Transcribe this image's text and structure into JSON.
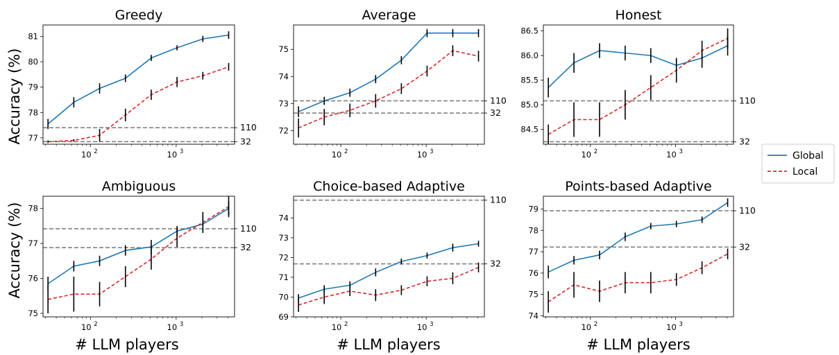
{
  "figure": {
    "ylabel": "Accuracy (%)",
    "xlabel": "# LLM players"
  },
  "legend": {
    "placement": "right-center",
    "entries": [
      {
        "name": "Global",
        "color": "#1f77b4",
        "style": "solid"
      },
      {
        "name": "Local",
        "color": "#d62728",
        "style": "dashed"
      }
    ]
  },
  "colors": {
    "global": "#1f77b4",
    "local": "#d62728",
    "reference": "#808080",
    "errorbar": "#000000"
  },
  "chart_data": [
    {
      "type": "line",
      "title": "Greedy",
      "xscale": "log",
      "xlim": [
        28,
        4800
      ],
      "ylim": [
        76.75,
        81.45
      ],
      "yticks": [
        77,
        78,
        79,
        80,
        81
      ],
      "x": [
        32,
        64,
        128,
        256,
        512,
        1024,
        2048,
        4096
      ],
      "series": [
        {
          "name": "Global",
          "values": [
            77.55,
            78.4,
            78.95,
            79.35,
            80.15,
            80.55,
            80.9,
            81.05
          ],
          "err": [
            0.2,
            0.2,
            0.2,
            0.15,
            0.12,
            0.1,
            0.12,
            0.15
          ]
        },
        {
          "name": "Local",
          "values": [
            76.85,
            76.9,
            77.1,
            77.9,
            78.7,
            79.2,
            79.45,
            79.8
          ],
          "err": [
            0.05,
            0.05,
            0.25,
            0.25,
            0.2,
            0.2,
            0.15,
            0.15
          ]
        }
      ],
      "reference_lines": [
        {
          "label": "110",
          "value": 77.4
        },
        {
          "label": "32",
          "value": 76.85
        }
      ]
    },
    {
      "type": "line",
      "title": "Average",
      "xscale": "log",
      "xlim": [
        28,
        4800
      ],
      "ylim": [
        71.5,
        75.9
      ],
      "yticks": [
        72,
        73,
        74,
        75
      ],
      "x": [
        32,
        64,
        128,
        256,
        512,
        1024,
        2048,
        4096
      ],
      "series": [
        {
          "name": "Global",
          "values": [
            72.7,
            73.1,
            73.4,
            73.9,
            74.6,
            75.6,
            75.6,
            75.6
          ],
          "err": [
            0.2,
            0.15,
            0.15,
            0.15,
            0.15,
            0.15,
            0.15,
            0.15
          ]
        },
        {
          "name": "Local",
          "values": [
            72.1,
            72.5,
            72.75,
            73.1,
            73.55,
            74.2,
            74.95,
            74.75
          ],
          "err": [
            0.35,
            0.3,
            0.25,
            0.25,
            0.2,
            0.2,
            0.2,
            0.2
          ]
        }
      ],
      "reference_lines": [
        {
          "label": "110",
          "value": 73.1
        },
        {
          "label": "32",
          "value": 72.65
        }
      ]
    },
    {
      "type": "line",
      "title": "Honest",
      "xscale": "log",
      "xlim": [
        28,
        4800
      ],
      "ylim": [
        84.2,
        86.62
      ],
      "yticks": [
        84.5,
        85.0,
        85.5,
        86.0,
        86.5
      ],
      "x": [
        32,
        64,
        128,
        256,
        512,
        1024,
        2048,
        4096
      ],
      "series": [
        {
          "name": "Global",
          "values": [
            85.35,
            85.85,
            86.1,
            86.05,
            86.0,
            85.8,
            85.95,
            86.2
          ],
          "err": [
            0.2,
            0.2,
            0.15,
            0.15,
            0.15,
            0.15,
            0.2,
            0.2
          ]
        },
        {
          "name": "Local",
          "values": [
            84.4,
            84.7,
            84.7,
            85.0,
            85.35,
            85.7,
            86.1,
            86.35
          ],
          "err": [
            0.2,
            0.35,
            0.35,
            0.3,
            0.25,
            0.25,
            0.2,
            0.2
          ]
        }
      ],
      "reference_lines": [
        {
          "label": "110",
          "value": 85.08
        },
        {
          "label": "32",
          "value": 84.25
        }
      ]
    },
    {
      "type": "line",
      "title": "Ambiguous",
      "xscale": "log",
      "xlim": [
        28,
        4800
      ],
      "ylim": [
        74.9,
        78.35
      ],
      "yticks": [
        75,
        76,
        77,
        78
      ],
      "x": [
        32,
        64,
        128,
        256,
        512,
        1024,
        2048,
        4096
      ],
      "series": [
        {
          "name": "Global",
          "values": [
            75.85,
            76.35,
            76.5,
            76.8,
            76.9,
            77.35,
            77.55,
            78.0
          ],
          "err": [
            0.2,
            0.15,
            0.15,
            0.15,
            0.2,
            0.15,
            0.2,
            0.2
          ]
        },
        {
          "name": "Local",
          "values": [
            75.4,
            75.55,
            75.55,
            76.05,
            76.55,
            77.15,
            77.6,
            78.05
          ],
          "err": [
            0.4,
            0.5,
            0.35,
            0.3,
            0.3,
            0.25,
            0.3,
            0.3
          ]
        }
      ],
      "reference_lines": [
        {
          "label": "110",
          "value": 77.42
        },
        {
          "label": "32",
          "value": 76.88
        }
      ]
    },
    {
      "type": "line",
      "title": "Choice-based Adaptive",
      "xscale": "log",
      "xlim": [
        28,
        4800
      ],
      "ylim": [
        69.0,
        75.1
      ],
      "yticks": [
        69,
        70,
        71,
        72,
        73,
        74
      ],
      "x": [
        32,
        64,
        128,
        256,
        512,
        1024,
        2048,
        4096
      ],
      "series": [
        {
          "name": "Global",
          "values": [
            69.95,
            70.4,
            70.6,
            71.25,
            71.8,
            72.1,
            72.5,
            72.7
          ],
          "err": [
            0.2,
            0.2,
            0.2,
            0.2,
            0.15,
            0.15,
            0.2,
            0.15
          ]
        },
        {
          "name": "Local",
          "values": [
            69.6,
            70.0,
            70.3,
            70.1,
            70.35,
            70.8,
            70.95,
            71.5
          ],
          "err": [
            0.35,
            0.35,
            0.25,
            0.3,
            0.25,
            0.25,
            0.3,
            0.25
          ]
        }
      ],
      "reference_lines": [
        {
          "label": "110",
          "value": 74.9
        },
        {
          "label": "32",
          "value": 71.68
        }
      ]
    },
    {
      "type": "line",
      "title": "Points-based Adaptive",
      "xscale": "log",
      "xlim": [
        28,
        4800
      ],
      "ylim": [
        73.95,
        79.6
      ],
      "yticks": [
        74,
        75,
        76,
        77,
        78,
        79
      ],
      "x": [
        32,
        64,
        128,
        256,
        512,
        1024,
        2048,
        4096
      ],
      "series": [
        {
          "name": "Global",
          "values": [
            76.05,
            76.6,
            76.85,
            77.7,
            78.2,
            78.3,
            78.5,
            79.3
          ],
          "err": [
            0.3,
            0.2,
            0.2,
            0.2,
            0.15,
            0.15,
            0.15,
            0.2
          ]
        },
        {
          "name": "Local",
          "values": [
            74.65,
            75.45,
            75.15,
            75.55,
            75.55,
            75.7,
            76.25,
            76.9
          ],
          "err": [
            0.5,
            0.6,
            0.5,
            0.5,
            0.5,
            0.3,
            0.3,
            0.25
          ]
        }
      ],
      "reference_lines": [
        {
          "label": "110",
          "value": 78.92
        },
        {
          "label": "32",
          "value": 77.22
        }
      ]
    }
  ]
}
